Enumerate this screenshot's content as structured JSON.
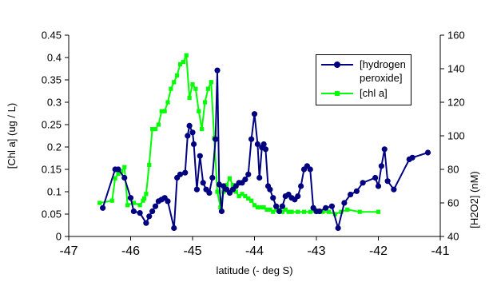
{
  "chart_data": {
    "type": "line",
    "title": "",
    "xlabel": "latitude (- deg S)",
    "ylabel": "[Chl a] (ug / L)",
    "y2label": "[H2O2] (nM)",
    "xlim": [
      -47,
      -41
    ],
    "ylim": [
      0,
      0.45
    ],
    "y2lim": [
      40,
      160
    ],
    "x_ticks": [
      "-47",
      "-46",
      "-45",
      "-44",
      "-43",
      "-42",
      "-41"
    ],
    "y_ticks": [
      "0",
      "0.05",
      "0.1",
      "0.15",
      "0.2",
      "0.25",
      "0.3",
      "0.35",
      "0.4",
      "0.45"
    ],
    "y2_ticks": [
      "40",
      "60",
      "80",
      "100",
      "120",
      "140",
      "160"
    ],
    "grid": false,
    "legend_position": "top-right",
    "series": [
      {
        "name": "[hydrogen peroxide]",
        "axis": "right",
        "color": "#000080",
        "marker": "circle",
        "x": [
          -46.45,
          -46.25,
          -46.2,
          -46.1,
          -46.0,
          -45.95,
          -45.85,
          -45.75,
          -45.7,
          -45.65,
          -45.6,
          -45.55,
          -45.5,
          -45.45,
          -45.4,
          -45.3,
          -45.25,
          -45.2,
          -45.12,
          -45.08,
          -45.05,
          -45.0,
          -44.98,
          -44.93,
          -44.88,
          -44.83,
          -44.78,
          -44.73,
          -44.68,
          -44.63,
          -44.6,
          -44.57,
          -44.53,
          -44.5,
          -44.45,
          -44.4,
          -44.35,
          -44.3,
          -44.25,
          -44.2,
          -44.15,
          -44.1,
          -44.05,
          -44.0,
          -43.95,
          -43.92,
          -43.88,
          -43.85,
          -43.82,
          -43.78,
          -43.75,
          -43.7,
          -43.65,
          -43.6,
          -43.55,
          -43.5,
          -43.45,
          -43.4,
          -43.35,
          -43.3,
          -43.25,
          -43.2,
          -43.15,
          -43.1,
          -43.05,
          -43.0,
          -42.95,
          -42.85,
          -42.75,
          -42.65,
          -42.55,
          -42.45,
          -42.35,
          -42.25,
          -42.05,
          -42.0,
          -41.95,
          -41.9,
          -41.85,
          -41.75,
          -41.5,
          -41.45,
          -41.2
        ],
        "values": [
          57,
          80,
          80,
          75,
          63,
          55,
          54,
          48,
          52,
          55,
          58,
          61,
          62,
          63,
          61,
          45,
          75,
          77,
          78,
          100,
          106,
          102,
          95,
          68,
          88,
          72,
          68,
          66,
          75,
          98,
          139,
          71,
          55,
          70,
          68,
          66,
          68,
          70,
          72,
          72,
          74,
          77,
          98,
          113,
          95,
          75,
          93,
          95,
          92,
          70,
          68,
          63,
          58,
          55,
          58,
          64,
          65,
          63,
          62,
          64,
          70,
          80,
          82,
          80,
          57,
          55,
          55,
          57,
          58,
          45,
          60,
          65,
          67,
          72,
          75,
          70,
          82,
          92,
          73,
          68,
          86,
          87,
          90
        ]
      },
      {
        "name": "[chl a]",
        "axis": "left",
        "color": "#00ff00",
        "marker": "square",
        "x": [
          -46.5,
          -46.3,
          -46.25,
          -46.2,
          -46.15,
          -46.1,
          -46.05,
          -45.95,
          -45.85,
          -45.8,
          -45.78,
          -45.75,
          -45.7,
          -45.65,
          -45.6,
          -45.55,
          -45.5,
          -45.45,
          -45.4,
          -45.35,
          -45.3,
          -45.25,
          -45.2,
          -45.15,
          -45.1,
          -45.05,
          -45.0,
          -44.95,
          -44.9,
          -44.85,
          -44.8,
          -44.75,
          -44.7,
          -44.65,
          -44.6,
          -44.55,
          -44.5,
          -44.45,
          -44.4,
          -44.35,
          -44.3,
          -44.25,
          -44.2,
          -44.15,
          -44.1,
          -44.05,
          -44.0,
          -43.95,
          -43.9,
          -43.85,
          -43.8,
          -43.75,
          -43.7,
          -43.65,
          -43.6,
          -43.55,
          -43.5,
          -43.45,
          -43.4,
          -43.3,
          -43.2,
          -43.1,
          -43.0,
          -42.9,
          -42.8,
          -42.7,
          -42.6,
          -42.5,
          -42.3,
          -42.0
        ],
        "values": [
          0.075,
          0.08,
          0.13,
          0.14,
          0.145,
          0.155,
          0.07,
          0.075,
          0.07,
          0.08,
          0.085,
          0.095,
          0.16,
          0.24,
          0.24,
          0.25,
          0.28,
          0.28,
          0.3,
          0.33,
          0.345,
          0.36,
          0.385,
          0.39,
          0.405,
          0.31,
          0.34,
          0.33,
          0.28,
          0.24,
          0.3,
          0.33,
          0.345,
          0.22,
          0.1,
          0.065,
          0.1,
          0.115,
          0.13,
          0.115,
          0.1,
          0.09,
          0.095,
          0.09,
          0.085,
          0.08,
          0.07,
          0.065,
          0.065,
          0.065,
          0.06,
          0.06,
          0.055,
          0.06,
          0.06,
          0.055,
          0.06,
          0.055,
          0.055,
          0.055,
          0.055,
          0.055,
          0.055,
          0.055,
          0.055,
          0.05,
          0.055,
          0.06,
          0.055,
          0.055
        ]
      }
    ]
  }
}
